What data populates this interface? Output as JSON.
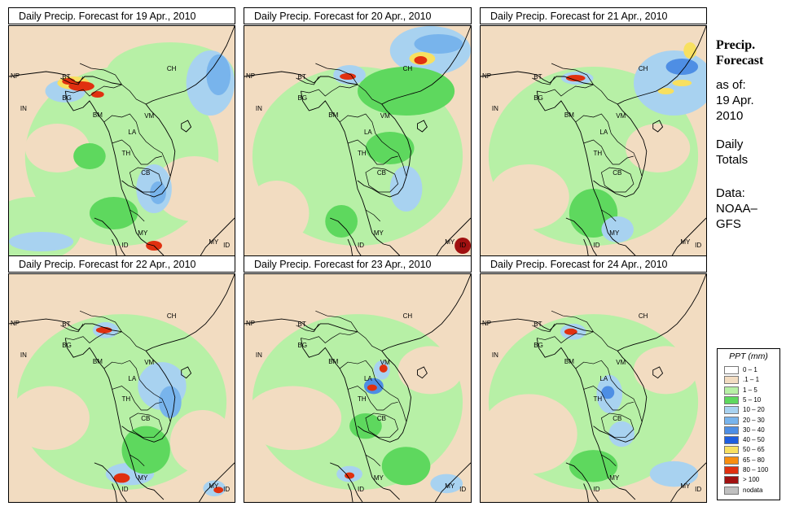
{
  "panels": [
    {
      "title": "Daily Precip. Forecast for  19 Apr., 2010"
    },
    {
      "title": "Daily Precip. Forecast for  20 Apr., 2010"
    },
    {
      "title": "Daily Precip. Forecast for  21 Apr., 2010"
    },
    {
      "title": "Daily Precip. Forecast for  22 Apr., 2010"
    },
    {
      "title": "Daily Precip. Forecast for  23 Apr., 2010"
    },
    {
      "title": "Daily Precip. Forecast for  24 Apr., 2010"
    }
  ],
  "country_labels": [
    "NP",
    "BT",
    "BG",
    "IN",
    "CH",
    "BM",
    "VM",
    "LA",
    "TH",
    "CB",
    "MY",
    "ID",
    "MY",
    "ID"
  ],
  "side": {
    "title1": "Precip.",
    "title2": "Forecast",
    "line1": "as of:",
    "line2": "19 Apr.",
    "line3": "2010",
    "line4": "Daily",
    "line5": "Totals",
    "line6": "Data:",
    "line7": "NOAA–",
    "line8": "GFS"
  },
  "legend": {
    "title": "PPT (mm)",
    "items": [
      {
        "label": "0 – 1",
        "color": "#ffffff"
      },
      {
        "label": ".1 – 1",
        "color": "#f2dcc1"
      },
      {
        "label": "1 – 5",
        "color": "#b7f0a6"
      },
      {
        "label": "5 – 10",
        "color": "#5ed85e"
      },
      {
        "label": "10 – 20",
        "color": "#a8d2f0"
      },
      {
        "label": "20 – 30",
        "color": "#78b4ec"
      },
      {
        "label": "30 – 40",
        "color": "#4e8ee4"
      },
      {
        "label": "40 – 50",
        "color": "#1e5ee0"
      },
      {
        "label": "50 – 65",
        "color": "#f8e060"
      },
      {
        "label": "65 – 80",
        "color": "#f88e10"
      },
      {
        "label": "80 – 100",
        "color": "#e03010"
      },
      {
        "label": "> 100",
        "color": "#a01010"
      },
      {
        "label": "nodata",
        "color": "#c0c0c0"
      }
    ]
  }
}
